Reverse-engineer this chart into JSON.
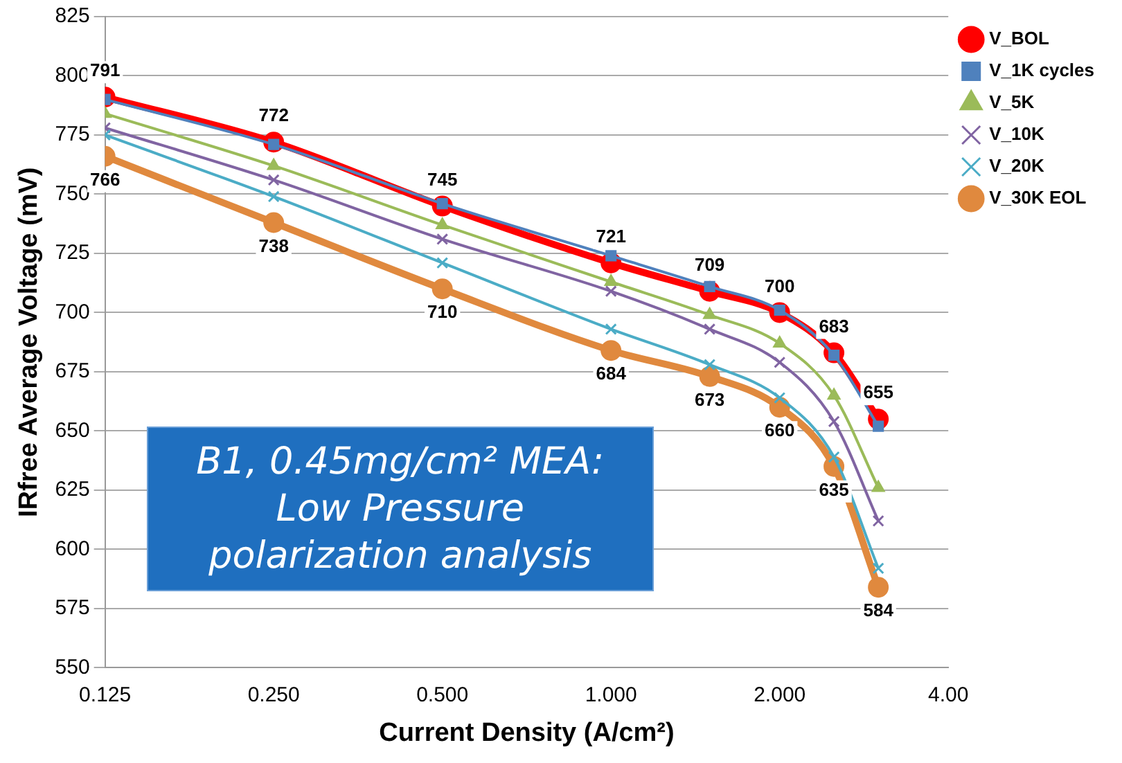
{
  "chart_data": {
    "type": "line",
    "xlabel": "Current Density (A/cm²)",
    "ylabel": "IRfree Average Voltage (mV)",
    "annotations": [
      "B1, 0.45mg/cm² MEA: Low Pressure polarization analysis"
    ],
    "x": [
      0.125,
      0.25,
      0.5,
      1.0,
      1.5,
      2.0,
      2.5,
      3.0
    ],
    "log": "x",
    "xlim": [
      0.125,
      4
    ],
    "xticks": [
      0.125,
      {
        "value": 0.25,
        "label": "0.250"
      },
      {
        "value": 0.5,
        "label": "0.500"
      },
      {
        "value": 1,
        "label": "1.000"
      },
      {
        "value": 2,
        "label": "2.000"
      },
      {
        "value": 4,
        "label": "4.00"
      }
    ],
    "ylim": [
      550,
      825
    ],
    "yticks": [
      550,
      575,
      600,
      625,
      650,
      675,
      700,
      725,
      750,
      775,
      800,
      825
    ],
    "grid": "y",
    "legend": "top right",
    "series": [
      {
        "name": "V_BOL",
        "color": "#ff0000",
        "marker": "circle",
        "values": [
          791,
          772,
          745,
          721,
          709,
          700,
          683,
          655
        ],
        "value_labels": [
          "791",
          "772",
          "745",
          "721",
          "709",
          "700",
          "683",
          "655"
        ]
      },
      {
        "name": "V_1K cycles",
        "color": "#4f81bd",
        "marker": "square",
        "values": [
          790,
          771,
          746,
          724,
          711,
          701,
          682,
          652
        ]
      },
      {
        "name": "V_5K",
        "color": "#9bbb59",
        "marker": "triangle",
        "values": [
          784,
          762,
          737,
          713,
          699,
          687,
          665,
          626
        ]
      },
      {
        "name": "V_10K",
        "color": "#8064a2",
        "marker": "cross",
        "values": [
          778,
          756,
          731,
          709,
          693,
          679,
          654,
          612
        ]
      },
      {
        "name": "V_20K",
        "color": "#4bacc6",
        "marker": "cross",
        "values": [
          775,
          749,
          721,
          693,
          678,
          664,
          639,
          592
        ]
      },
      {
        "name": "V_30K EOL",
        "color": "#e0893e",
        "marker": "circle",
        "values": [
          766,
          738,
          710,
          684,
          673,
          660,
          635,
          584
        ],
        "value_labels": [
          "766",
          "738",
          "710",
          "684",
          "673",
          "660",
          "635",
          "584"
        ]
      }
    ]
  }
}
